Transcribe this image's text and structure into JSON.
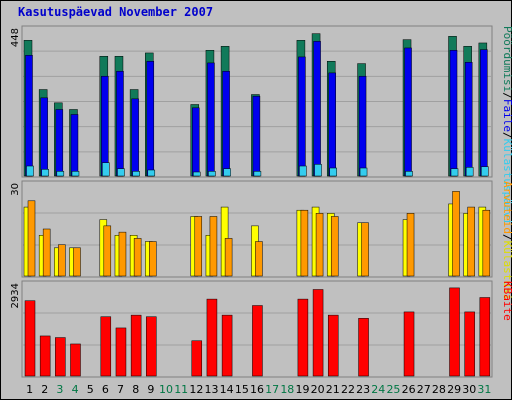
{
  "title": "Kasutuspäevad November 2007",
  "colors": {
    "background": "#c0c0c0",
    "title": "#0000cc",
    "weekday_label": "#000000",
    "weekend_label": "#007744"
  },
  "chart_data": [
    {
      "type": "bar",
      "panel": "top",
      "ymax_label": "448",
      "ylim": [
        0,
        448
      ],
      "categories": [
        "1",
        "2",
        "3",
        "4",
        "5",
        "6",
        "7",
        "8",
        "9",
        "10",
        "11",
        "12",
        "13",
        "14",
        "15",
        "16",
        "17",
        "18",
        "19",
        "20",
        "21",
        "22",
        "23",
        "24",
        "25",
        "26",
        "27",
        "28",
        "29",
        "30",
        "31"
      ],
      "weekend": [
        false,
        false,
        true,
        true,
        false,
        false,
        false,
        false,
        false,
        true,
        true,
        false,
        false,
        false,
        false,
        false,
        true,
        true,
        false,
        false,
        false,
        false,
        false,
        true,
        true,
        false,
        false,
        false,
        false,
        false,
        true
      ],
      "series": [
        {
          "name": "Pöördumisi",
          "color": "#117a5a",
          "values": [
            408,
            260,
            220,
            200,
            0,
            360,
            360,
            260,
            370,
            0,
            0,
            215,
            378,
            390,
            0,
            245,
            0,
            0,
            408,
            428,
            345,
            0,
            338,
            0,
            0,
            410,
            0,
            0,
            420,
            390,
            400
          ]
        },
        {
          "name": "Faile",
          "color": "#0000ee",
          "values": [
            363,
            235,
            200,
            185,
            0,
            300,
            315,
            232,
            345,
            0,
            0,
            205,
            340,
            315,
            0,
            240,
            0,
            0,
            358,
            405,
            310,
            0,
            300,
            0,
            0,
            385,
            0,
            0,
            378,
            342,
            380
          ]
        },
        {
          "name": "Külastuspäevi",
          "color": "#33ccee",
          "values": [
            30,
            20,
            14,
            14,
            0,
            40,
            22,
            14,
            18,
            0,
            0,
            12,
            14,
            22,
            0,
            14,
            0,
            0,
            30,
            35,
            24,
            0,
            24,
            0,
            0,
            14,
            0,
            0,
            22,
            26,
            28
          ]
        }
      ]
    },
    {
      "type": "bar",
      "panel": "middle",
      "ymax_label": "30",
      "ylim": [
        0,
        30
      ],
      "series": [
        {
          "name": "Külastusi",
          "color": "#ffff00",
          "values": [
            22,
            13,
            9,
            9,
            0,
            18,
            13,
            13,
            11,
            0,
            0,
            19,
            13,
            22,
            0,
            16,
            0,
            0,
            21,
            22,
            20,
            0,
            17,
            0,
            0,
            18,
            0,
            0,
            23,
            20,
            22
          ]
        },
        {
          "name": "Arvuteid",
          "color": "#ff9900",
          "values": [
            24,
            15,
            10,
            9,
            0,
            16,
            14,
            12,
            11,
            0,
            0,
            19,
            19,
            12,
            0,
            11,
            0,
            0,
            21,
            20,
            19,
            0,
            17,
            0,
            0,
            20,
            0,
            0,
            27,
            22,
            21
          ]
        }
      ]
    },
    {
      "type": "bar",
      "panel": "bottom",
      "ymax_label": "2934",
      "ylim": [
        0,
        2934
      ],
      "series": [
        {
          "name": "KBaite",
          "color": "#ff0000",
          "values": [
            2350,
            1250,
            1200,
            1000,
            0,
            1850,
            1500,
            1900,
            1850,
            0,
            0,
            1100,
            2400,
            1900,
            0,
            2200,
            0,
            0,
            2400,
            2700,
            1900,
            0,
            1800,
            0,
            0,
            2000,
            0,
            0,
            2750,
            2000,
            2450
          ]
        }
      ]
    }
  ],
  "side_labels": {
    "top": [
      "Pöördumisi",
      "/",
      "Faile",
      "/",
      "Külastuspäevi"
    ],
    "middle": [
      "Arvuteid",
      "/",
      "Külastusi"
    ],
    "bottom": [
      "KBaite"
    ]
  }
}
